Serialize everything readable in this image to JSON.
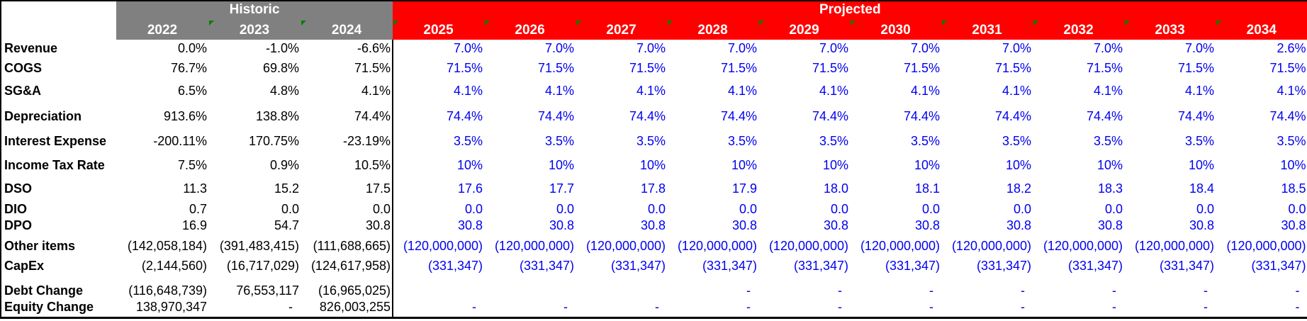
{
  "header": {
    "historic_label": "Historic",
    "projected_label": "Projected",
    "historic_years": [
      "2022",
      "2023",
      "2024"
    ],
    "projected_years": [
      "2025",
      "2026",
      "2027",
      "2028",
      "2029",
      "2030",
      "2031",
      "2032",
      "2033",
      "2034"
    ],
    "comment_marker_years": [
      "2023",
      "2024",
      "2025",
      "2026",
      "2027",
      "2028",
      "2029",
      "2030",
      "2031",
      "2032",
      "2033",
      "2034"
    ]
  },
  "colors": {
    "historic_header_bg": "#808080",
    "projected_header_bg": "#ff0000",
    "header_text": "#ffffff",
    "historic_value_text": "#000000",
    "projected_value_text": "#0000f0",
    "comment_marker_green": "#008000"
  },
  "rows": [
    {
      "label": "Revenue",
      "historic": [
        "0.0%",
        "-1.0%",
        "-6.6%"
      ],
      "projected": [
        "7.0%",
        "7.0%",
        "7.0%",
        "7.0%",
        "7.0%",
        "7.0%",
        "7.0%",
        "7.0%",
        "7.0%",
        "2.6%"
      ]
    },
    {
      "label": "COGS",
      "historic": [
        "76.7%",
        "69.8%",
        "71.5%"
      ],
      "projected": [
        "71.5%",
        "71.5%",
        "71.5%",
        "71.5%",
        "71.5%",
        "71.5%",
        "71.5%",
        "71.5%",
        "71.5%",
        "71.5%"
      ]
    },
    {
      "label": "SG&A",
      "historic": [
        "6.5%",
        "4.8%",
        "4.1%"
      ],
      "projected": [
        "4.1%",
        "4.1%",
        "4.1%",
        "4.1%",
        "4.1%",
        "4.1%",
        "4.1%",
        "4.1%",
        "4.1%",
        "4.1%"
      ]
    },
    {
      "label": "Depreciation",
      "historic": [
        "913.6%",
        "138.8%",
        "74.4%"
      ],
      "projected": [
        "74.4%",
        "74.4%",
        "74.4%",
        "74.4%",
        "74.4%",
        "74.4%",
        "74.4%",
        "74.4%",
        "74.4%",
        "74.4%"
      ]
    },
    {
      "label": "Interest Expense",
      "historic": [
        "-200.11%",
        "170.75%",
        "-23.19%"
      ],
      "projected": [
        "3.5%",
        "3.5%",
        "3.5%",
        "3.5%",
        "3.5%",
        "3.5%",
        "3.5%",
        "3.5%",
        "3.5%",
        "3.5%"
      ]
    },
    {
      "label": "Income Tax Rate",
      "historic": [
        "7.5%",
        "0.9%",
        "10.5%"
      ],
      "projected": [
        "10%",
        "10%",
        "10%",
        "10%",
        "10%",
        "10%",
        "10%",
        "10%",
        "10%",
        "10%"
      ]
    },
    {
      "label": "DSO",
      "historic": [
        "11.3",
        "15.2",
        "17.5"
      ],
      "projected": [
        "17.6",
        "17.7",
        "17.8",
        "17.9",
        "18.0",
        "18.1",
        "18.2",
        "18.3",
        "18.4",
        "18.5"
      ]
    },
    {
      "label": "DIO",
      "historic": [
        "0.7",
        "0.0",
        "0.0"
      ],
      "projected": [
        "0.0",
        "0.0",
        "0.0",
        "0.0",
        "0.0",
        "0.0",
        "0.0",
        "0.0",
        "0.0",
        "0.0"
      ]
    },
    {
      "label": "DPO",
      "historic": [
        "16.9",
        "54.7",
        "30.8"
      ],
      "projected": [
        "30.8",
        "30.8",
        "30.8",
        "30.8",
        "30.8",
        "30.8",
        "30.8",
        "30.8",
        "30.8",
        "30.8"
      ]
    },
    {
      "label": "Other items",
      "historic": [
        "(142,058,184)",
        "(391,483,415)",
        "(111,688,665)"
      ],
      "projected": [
        "(120,000,000)",
        "(120,000,000)",
        "(120,000,000)",
        "(120,000,000)",
        "(120,000,000)",
        "(120,000,000)",
        "(120,000,000)",
        "(120,000,000)",
        "(120,000,000)",
        "(120,000,000)"
      ]
    },
    {
      "label": "CapEx",
      "historic": [
        "(2,144,560)",
        "(16,717,029)",
        "(124,617,958)"
      ],
      "projected": [
        "(331,347)",
        "(331,347)",
        "(331,347)",
        "(331,347)",
        "(331,347)",
        "(331,347)",
        "(331,347)",
        "(331,347)",
        "(331,347)",
        "(331,347)"
      ]
    },
    {
      "label": "Debt Change",
      "historic": [
        "(116,648,739)",
        "76,553,117",
        "(16,965,025)"
      ],
      "projected": [
        "",
        "",
        "",
        "-",
        "-",
        "-",
        "-",
        "-",
        "-",
        "-"
      ]
    },
    {
      "label": "Equity Change",
      "historic": [
        "138,970,347",
        "-",
        "826,003,255"
      ],
      "projected": [
        "-",
        "-",
        "-",
        "-",
        "-",
        "-",
        "-",
        "-",
        "-",
        "-"
      ]
    }
  ]
}
